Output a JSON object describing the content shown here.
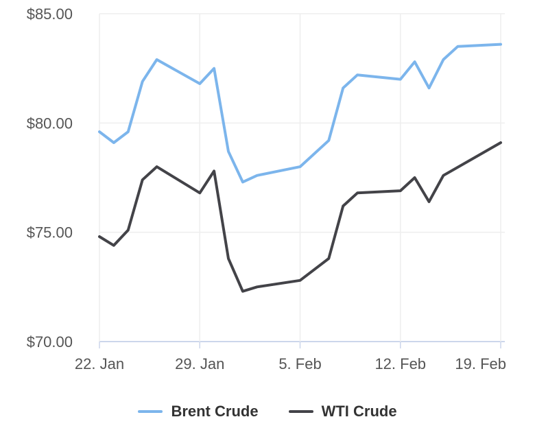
{
  "chart_data": {
    "type": "line",
    "title": "",
    "xlabel": "",
    "ylabel": "",
    "ylim": [
      70,
      85
    ],
    "yticks": [
      70,
      75,
      80,
      85
    ],
    "ytick_labels": [
      "$70.00",
      "$75.00",
      "$80.00",
      "$85.00"
    ],
    "xticks": [
      {
        "date": "2024-01-22",
        "label": "22. Jan"
      },
      {
        "date": "2024-01-29",
        "label": "29. Jan"
      },
      {
        "date": "2024-02-05",
        "label": "5. Feb"
      },
      {
        "date": "2024-02-12",
        "label": "12. Feb"
      },
      {
        "date": "2024-02-19",
        "label": "19. Feb"
      }
    ],
    "xlim": [
      "2024-01-22",
      "2024-02-19"
    ],
    "grid": true,
    "legend_position": "bottom-center",
    "series": [
      {
        "name": "Brent Crude",
        "color": "#7cb5ec",
        "x": [
          "2024-01-22",
          "2024-01-23",
          "2024-01-24",
          "2024-01-25",
          "2024-01-26",
          "2024-01-29",
          "2024-01-30",
          "2024-01-31",
          "2024-02-01",
          "2024-02-02",
          "2024-02-05",
          "2024-02-07",
          "2024-02-08",
          "2024-02-09",
          "2024-02-12",
          "2024-02-13",
          "2024-02-14",
          "2024-02-15",
          "2024-02-16",
          "2024-02-19"
        ],
        "values": [
          79.6,
          79.1,
          79.6,
          81.9,
          82.9,
          81.8,
          82.5,
          78.7,
          77.3,
          77.6,
          78.0,
          79.2,
          81.6,
          82.2,
          82.0,
          82.8,
          81.6,
          82.9,
          83.5,
          83.6
        ]
      },
      {
        "name": "WTI Crude",
        "color": "#434348",
        "x": [
          "2024-01-22",
          "2024-01-23",
          "2024-01-24",
          "2024-01-25",
          "2024-01-26",
          "2024-01-29",
          "2024-01-30",
          "2024-01-31",
          "2024-02-01",
          "2024-02-02",
          "2024-02-05",
          "2024-02-07",
          "2024-02-08",
          "2024-02-09",
          "2024-02-12",
          "2024-02-13",
          "2024-02-14",
          "2024-02-15",
          "2024-02-19"
        ],
        "values": [
          74.8,
          74.4,
          75.1,
          77.4,
          78.0,
          76.8,
          77.8,
          73.8,
          72.3,
          72.5,
          72.8,
          73.8,
          76.2,
          76.8,
          76.9,
          77.5,
          76.4,
          77.6,
          79.1
        ]
      }
    ]
  }
}
